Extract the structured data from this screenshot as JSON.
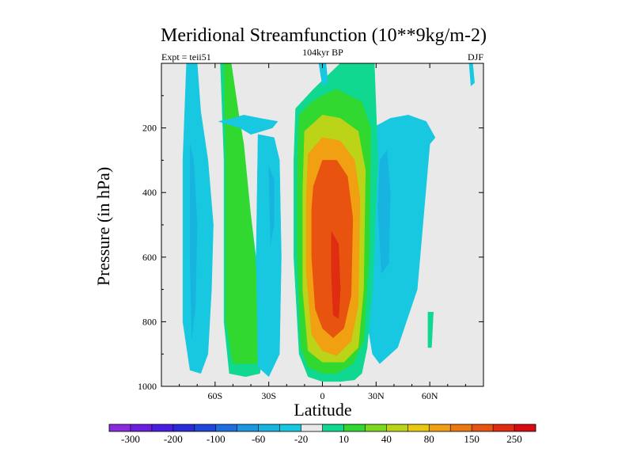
{
  "chart_data": {
    "type": "filled-contour",
    "title": "Meridional Streamfunction (10**9kg/m-2)",
    "subtitle_left": "Expt = teii51",
    "subtitle_center": "104kyr BP",
    "subtitle_right": "DJF",
    "xlabel": "Latitude",
    "ylabel": "Pressure (in hPa)",
    "x_ticks": [
      "60S",
      "30S",
      "0",
      "30N",
      "60N"
    ],
    "x_tick_values": [
      -60,
      -30,
      0,
      30,
      60
    ],
    "y_ticks": [
      "200",
      "400",
      "600",
      "800",
      "1000"
    ],
    "y_tick_values": [
      200,
      400,
      600,
      800,
      1000
    ],
    "xlim": [
      -90,
      90
    ],
    "ylim": [
      1000,
      0
    ],
    "colorbar_labels": [
      "-300",
      "-200",
      "-100",
      "-60",
      "-20",
      "10",
      "40",
      "80",
      "150",
      "250"
    ],
    "colorbar_colors": [
      "#8a2be0",
      "#6a1ee0",
      "#4a1ee0",
      "#2a2ad8",
      "#1e46d8",
      "#1e6ee0",
      "#1e96e0",
      "#18b4e0",
      "#18c8e0",
      "#e9e9e9",
      "#10d890",
      "#30d830",
      "#7ed820",
      "#bcd418",
      "#e8c810",
      "#f0a010",
      "#ec7810",
      "#e85410",
      "#e02c10",
      "#d80c10"
    ],
    "background_color": "#e9e9e9",
    "field_regions": [
      {
        "level": "-20",
        "color": "#18c8e0",
        "lat": [
          -76,
          -70,
          -68,
          -64,
          -61,
          -62,
          -64,
          -68,
          -74,
          -78,
          -78,
          -76
        ],
        "p": [
          0,
          0,
          150,
          300,
          500,
          700,
          900,
          960,
          950,
          800,
          300,
          0
        ]
      },
      {
        "level": "-60",
        "color": "#18b4e0",
        "lat": [
          -74,
          -72,
          -70,
          -71,
          -73,
          -74,
          -74
        ],
        "p": [
          250,
          300,
          500,
          750,
          850,
          600,
          250
        ]
      },
      {
        "level": "10",
        "color": "#10d890",
        "lat": [
          -57,
          -51,
          -48,
          -45,
          -35,
          -33,
          -35,
          -43,
          -52,
          -55,
          -55,
          -57
        ],
        "p": [
          0,
          0,
          150,
          250,
          700,
          880,
          960,
          970,
          960,
          800,
          300,
          0
        ]
      },
      {
        "level": "40",
        "color": "#30d830",
        "lat": [
          -55,
          -51,
          -47,
          -44,
          -36,
          -34,
          -36,
          -50,
          -54,
          -54,
          -55
        ],
        "p": [
          0,
          0,
          150,
          250,
          700,
          880,
          930,
          930,
          800,
          300,
          0
        ]
      },
      {
        "level": "-20",
        "color": "#18c8e0",
        "lat": [
          -36,
          -27,
          -24,
          -23,
          -24,
          -30,
          -36,
          -37,
          -36
        ],
        "p": [
          220,
          230,
          300,
          600,
          900,
          970,
          940,
          600,
          220
        ]
      },
      {
        "level": "-60",
        "color": "#18b4e0",
        "lat": [
          -30,
          -27,
          -27,
          -29,
          -30
        ],
        "p": [
          320,
          360,
          500,
          560,
          320
        ]
      },
      {
        "level": "-20",
        "color": "#18c8e0",
        "lat": [
          -58,
          -46,
          -40,
          -28,
          -25,
          -35,
          -44,
          -50,
          -58
        ],
        "p": [
          180,
          200,
          220,
          200,
          180,
          170,
          160,
          170,
          180
        ]
      },
      {
        "level": "-20",
        "color": "#18c8e0",
        "lat": [
          18,
          38,
          48,
          58,
          63,
          60,
          53,
          42,
          32,
          28,
          22,
          18
        ],
        "p": [
          230,
          170,
          160,
          180,
          230,
          250,
          700,
          880,
          930,
          900,
          700,
          230
        ]
      },
      {
        "level": "-60",
        "color": "#18b4e0",
        "lat": [
          32,
          36,
          38,
          37,
          33,
          31,
          32
        ],
        "p": [
          300,
          270,
          400,
          620,
          650,
          450,
          300
        ]
      },
      {
        "level": "10",
        "color": "#10d890",
        "lat": [
          -15,
          -5,
          10,
          20,
          29,
          31,
          28,
          25,
          22,
          18,
          10,
          0,
          -8,
          -13,
          -16,
          -16,
          -15
        ],
        "p": [
          140,
          80,
          0,
          0,
          0,
          300,
          700,
          880,
          960,
          980,
          985,
          985,
          970,
          900,
          600,
          300,
          140
        ]
      },
      {
        "level": "40",
        "color": "#30d830",
        "lat": [
          -13,
          -6,
          0,
          8,
          22,
          27,
          26,
          23,
          17,
          8,
          0,
          -8,
          -12,
          -14,
          -14,
          -13
        ],
        "p": [
          160,
          120,
          100,
          80,
          120,
          200,
          600,
          860,
          930,
          960,
          960,
          940,
          880,
          600,
          300,
          160
        ]
      },
      {
        "level": "80",
        "color": "#bcd418",
        "lat": [
          -10,
          0,
          10,
          20,
          24,
          23,
          20,
          12,
          0,
          -8,
          -11,
          -11,
          -10
        ],
        "p": [
          210,
          160,
          170,
          210,
          330,
          700,
          880,
          925,
          925,
          890,
          700,
          400,
          210
        ]
      },
      {
        "level": "150",
        "color": "#f0a010",
        "lat": [
          -8,
          0,
          10,
          18,
          21,
          20,
          16,
          8,
          0,
          -6,
          -9,
          -9,
          -8
        ],
        "p": [
          280,
          230,
          240,
          300,
          420,
          750,
          860,
          905,
          890,
          840,
          650,
          420,
          280
        ]
      },
      {
        "level": "250",
        "color": "#e85410",
        "lat": [
          -5,
          0,
          8,
          14,
          17,
          16,
          12,
          6,
          0,
          -4,
          -6,
          -6,
          -5
        ],
        "p": [
          380,
          300,
          300,
          350,
          480,
          720,
          820,
          850,
          820,
          760,
          600,
          450,
          380
        ]
      },
      {
        "level": "250+",
        "color": "#e02c10",
        "lat": [
          5,
          9,
          10,
          9,
          6,
          5,
          5
        ],
        "p": [
          520,
          560,
          700,
          790,
          780,
          650,
          520
        ]
      },
      {
        "level": "-20",
        "color": "#18c8e0",
        "lat": [
          -2,
          2,
          3,
          0,
          -2
        ],
        "p": [
          0,
          0,
          60,
          70,
          0
        ]
      },
      {
        "level": "-20",
        "color": "#18c8e0",
        "lat": [
          82,
          84,
          85,
          83,
          82
        ],
        "p": [
          0,
          0,
          60,
          70,
          0
        ]
      },
      {
        "level": "10",
        "color": "#10d890",
        "lat": [
          59,
          62,
          61,
          59,
          59
        ],
        "p": [
          770,
          770,
          880,
          880,
          770
        ]
      }
    ]
  }
}
